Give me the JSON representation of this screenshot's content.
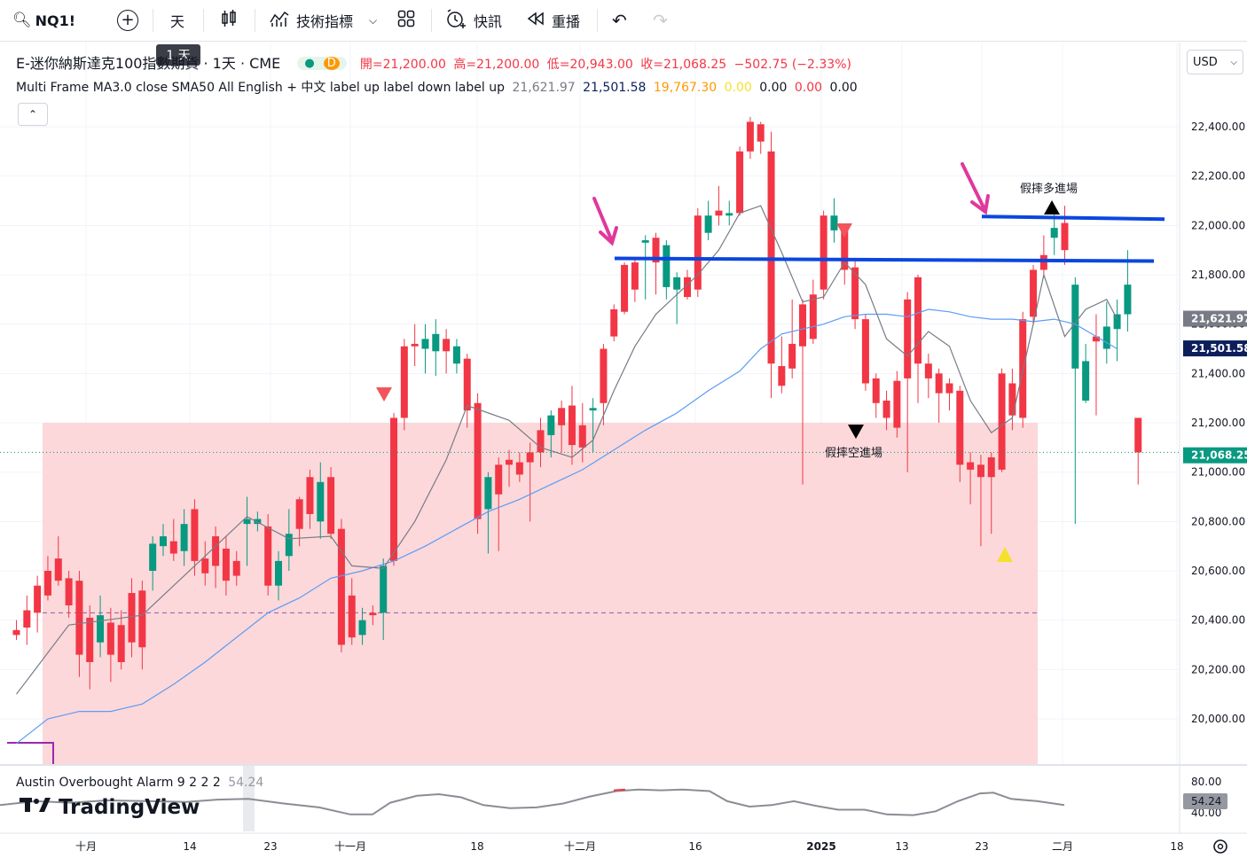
{
  "toolbar": {
    "symbol": "NQ1!",
    "interval": "天",
    "indicators_label": "技術指標",
    "alert_label": "快訊",
    "replay_label": "重播",
    "interval_tooltip": "1 天"
  },
  "legend": {
    "instrument": "E-迷你納斯達克100指數期貨 · 1天 · CME",
    "badge": "D",
    "open": "開=21,200.00",
    "high": "高=21,200.00",
    "low": "低=20,943.00",
    "close": "收=21,068.25",
    "change": "−502.75 (−2.33%)",
    "indicator_name": "Multi Frame MA3.0 close SMA50 All English + 中文 label up label down label up",
    "indicator_values": [
      "21,621.97",
      "21,501.58",
      "19,767.30",
      "0.00",
      "0.00",
      "0.00",
      "0.00"
    ]
  },
  "currency": "USD",
  "price_axis": {
    "ticks": [
      "22,400.00",
      "22,200.00",
      "22,000.00",
      "21,800.00",
      "21,600.00",
      "21,400.00",
      "21,200.00",
      "21,000.00",
      "20,800.00",
      "20,600.00",
      "20,400.00",
      "20,200.00",
      "20,000.00"
    ],
    "badges": [
      {
        "text": "21,621.97",
        "color": "#787b86"
      },
      {
        "text": "21,501.58",
        "color": "#0c1f5c"
      },
      {
        "text": "21,068.25",
        "color": "#089981"
      }
    ]
  },
  "annotations": {
    "fake_long": "假摔多進場",
    "fake_short": "假摔空進場"
  },
  "indicator_pane": {
    "title": "Austin Overbought Alarm 9 2 2 2",
    "value": "54.24",
    "axis": [
      "80.00",
      "40.00"
    ],
    "badge": "54.24"
  },
  "time_axis": [
    "十月",
    "14",
    "23",
    "十一月",
    "18",
    "十二月",
    "16",
    "2025",
    "13",
    "23",
    "二月",
    "18"
  ],
  "branding": "TradingView",
  "colors": {
    "up": "#089981",
    "down": "#f23645",
    "zone": "#fcd8da",
    "line_blue": "#0b46e0",
    "arrow_pink": "#e0389c"
  },
  "chart_data": {
    "type": "candlestick",
    "symbol": "NQ1!",
    "interval": "1D",
    "ylim": [
      19880,
      22480
    ],
    "ohlc": [
      [
        20360,
        20340,
        20320,
        20400
      ],
      [
        20440,
        20370,
        20300,
        20500
      ],
      [
        20540,
        20430,
        20350,
        20580
      ],
      [
        20600,
        20500,
        20480,
        20660
      ],
      [
        20650,
        20560,
        20540,
        20740
      ],
      [
        20570,
        20460,
        20410,
        20600
      ],
      [
        20560,
        20260,
        20170,
        20600
      ],
      [
        20410,
        20230,
        20120,
        20460
      ],
      [
        20310,
        20420,
        20250,
        20500
      ],
      [
        20390,
        20260,
        20150,
        20450
      ],
      [
        20380,
        20230,
        20200,
        20440
      ],
      [
        20510,
        20310,
        20250,
        20570
      ],
      [
        20520,
        20290,
        20200,
        20560
      ],
      [
        20600,
        20710,
        20520,
        20740
      ],
      [
        20700,
        20740,
        20660,
        20790
      ],
      [
        20720,
        20670,
        20640,
        20810
      ],
      [
        20680,
        20790,
        20620,
        20850
      ],
      [
        20850,
        20640,
        20580,
        20890
      ],
      [
        20650,
        20590,
        20540,
        20720
      ],
      [
        20740,
        20620,
        20530,
        20780
      ],
      [
        20690,
        20560,
        20500,
        20740
      ],
      [
        20640,
        20580,
        20540,
        20680
      ],
      [
        20790,
        20810,
        20620,
        20900
      ],
      [
        20790,
        20810,
        20760,
        20840
      ],
      [
        20780,
        20540,
        20500,
        20830
      ],
      [
        20540,
        20640,
        20480,
        20680
      ],
      [
        20660,
        20750,
        20600,
        20850
      ],
      [
        20890,
        20770,
        20700,
        20900
      ],
      [
        20980,
        20830,
        20770,
        21010
      ],
      [
        20800,
        20960,
        20730,
        21040
      ],
      [
        20980,
        20750,
        20730,
        21020
      ],
      [
        20770,
        20300,
        20270,
        20810
      ],
      [
        20500,
        20330,
        20300,
        20570
      ],
      [
        20340,
        20400,
        20300,
        20450
      ],
      [
        20430,
        20420,
        20380,
        20460
      ],
      [
        20430,
        20620,
        20320,
        20650
      ],
      [
        21220,
        20640,
        20620,
        21240
      ],
      [
        21510,
        21220,
        21170,
        21540
      ],
      [
        21520,
        21510,
        21430,
        21600
      ],
      [
        21500,
        21540,
        21400,
        21600
      ],
      [
        21490,
        21560,
        21390,
        21620
      ],
      [
        21540,
        21490,
        21400,
        21580
      ],
      [
        21440,
        21510,
        21400,
        21540
      ],
      [
        21460,
        21250,
        21180,
        21480
      ],
      [
        21280,
        20810,
        20750,
        21320
      ],
      [
        20850,
        20980,
        20670,
        21000
      ],
      [
        21030,
        20910,
        20680,
        21060
      ],
      [
        21050,
        21030,
        20940,
        21090
      ],
      [
        21040,
        20990,
        20960,
        21080
      ],
      [
        21080,
        21040,
        20800,
        21120
      ],
      [
        21170,
        21080,
        21020,
        21220
      ],
      [
        21150,
        21230,
        21060,
        21250
      ],
      [
        21260,
        21190,
        21080,
        21290
      ],
      [
        21270,
        21110,
        21030,
        21350
      ],
      [
        21190,
        21100,
        21040,
        21280
      ],
      [
        21250,
        21260,
        21080,
        21300
      ],
      [
        21500,
        21280,
        21190,
        21520
      ],
      [
        21660,
        21550,
        21530,
        21680
      ],
      [
        21840,
        21650,
        21640,
        21850
      ],
      [
        21850,
        21740,
        21690,
        21870
      ],
      [
        21930,
        21940,
        21700,
        21960
      ],
      [
        21950,
        21850,
        21720,
        21970
      ],
      [
        21750,
        21920,
        21700,
        21940
      ],
      [
        21740,
        21790,
        21600,
        21810
      ],
      [
        21790,
        21710,
        21700,
        21820
      ],
      [
        22040,
        21740,
        21710,
        22070
      ],
      [
        21970,
        22040,
        21940,
        22100
      ],
      [
        22060,
        22040,
        22000,
        22160
      ],
      [
        22040,
        22050,
        22000,
        22100
      ],
      [
        22300,
        22050,
        22040,
        22320
      ],
      [
        22420,
        22300,
        22270,
        22440
      ],
      [
        22410,
        22340,
        22290,
        22420
      ],
      [
        22300,
        21440,
        21300,
        22380
      ],
      [
        21430,
        21350,
        21320,
        21550
      ],
      [
        21520,
        21420,
        21380,
        21700
      ],
      [
        21680,
        21510,
        20950,
        21700
      ],
      [
        21720,
        21540,
        21520,
        21780
      ],
      [
        22040,
        21740,
        21700,
        22060
      ],
      [
        21980,
        22040,
        21930,
        22110
      ],
      [
        21980,
        21820,
        21760,
        22000
      ],
      [
        21830,
        21620,
        21580,
        21860
      ],
      [
        21620,
        21360,
        21330,
        21640
      ],
      [
        21380,
        21280,
        21220,
        21400
      ],
      [
        21290,
        21220,
        21170,
        21330
      ],
      [
        21370,
        21180,
        21140,
        21410
      ],
      [
        21700,
        21380,
        21000,
        21730
      ],
      [
        21790,
        21440,
        21280,
        21800
      ],
      [
        21440,
        21380,
        21300,
        21480
      ],
      [
        21400,
        21320,
        21200,
        21420
      ],
      [
        21360,
        21320,
        21250,
        21380
      ],
      [
        21330,
        21030,
        20960,
        21350
      ],
      [
        21040,
        21010,
        20870,
        21080
      ],
      [
        21030,
        20980,
        20700,
        21070
      ],
      [
        21060,
        20980,
        20750,
        21080
      ],
      [
        21400,
        21010,
        21000,
        21420
      ],
      [
        21360,
        21230,
        21170,
        21420
      ],
      [
        21620,
        21220,
        21180,
        21650
      ],
      [
        21820,
        21630,
        21600,
        21840
      ],
      [
        21880,
        21820,
        21790,
        21960
      ],
      [
        21950,
        21990,
        21880,
        22060
      ],
      [
        22010,
        21900,
        21840,
        22080
      ],
      [
        21420,
        21760,
        20790,
        21790
      ],
      [
        21290,
        21450,
        21280,
        21520
      ],
      [
        21550,
        21530,
        21230,
        21640
      ],
      [
        21500,
        21590,
        21440,
        21690
      ],
      [
        21580,
        21640,
        21450,
        21700
      ],
      [
        21640,
        21760,
        21570,
        21900
      ],
      [
        21220,
        21080,
        20950,
        21220
      ]
    ],
    "ma_fast": [
      [
        0,
        20100
      ],
      [
        5,
        20380
      ],
      [
        12,
        20420
      ],
      [
        16,
        20580
      ],
      [
        19,
        20700
      ],
      [
        22,
        20820
      ],
      [
        26,
        20730
      ],
      [
        30,
        20740
      ],
      [
        32,
        20620
      ],
      [
        35,
        20610
      ],
      [
        38,
        20800
      ],
      [
        41,
        21050
      ],
      [
        43,
        21270
      ],
      [
        47,
        21210
      ],
      [
        50,
        21100
      ],
      [
        53,
        21060
      ],
      [
        55,
        21130
      ],
      [
        57,
        21330
      ],
      [
        59,
        21510
      ],
      [
        61,
        21640
      ],
      [
        63,
        21720
      ],
      [
        65,
        21800
      ],
      [
        67,
        21900
      ],
      [
        69,
        22050
      ],
      [
        71,
        22080
      ],
      [
        73,
        21890
      ],
      [
        75,
        21690
      ],
      [
        77,
        21710
      ],
      [
        79,
        21850
      ],
      [
        81,
        21760
      ],
      [
        83,
        21540
      ],
      [
        85,
        21470
      ],
      [
        87,
        21570
      ],
      [
        89,
        21510
      ],
      [
        91,
        21290
      ],
      [
        93,
        21160
      ],
      [
        95,
        21220
      ],
      [
        97,
        21600
      ],
      [
        98,
        21800
      ],
      [
        100,
        21550
      ],
      [
        102,
        21660
      ],
      [
        104,
        21700
      ],
      [
        105,
        21620
      ]
    ],
    "ma_slow": [
      [
        0,
        19900
      ],
      [
        3,
        20000
      ],
      [
        6,
        20030
      ],
      [
        9,
        20030
      ],
      [
        12,
        20060
      ],
      [
        15,
        20140
      ],
      [
        18,
        20230
      ],
      [
        21,
        20330
      ],
      [
        24,
        20430
      ],
      [
        27,
        20490
      ],
      [
        30,
        20570
      ],
      [
        33,
        20600
      ],
      [
        36,
        20640
      ],
      [
        39,
        20700
      ],
      [
        42,
        20770
      ],
      [
        45,
        20840
      ],
      [
        48,
        20890
      ],
      [
        51,
        20950
      ],
      [
        54,
        21010
      ],
      [
        57,
        21090
      ],
      [
        60,
        21170
      ],
      [
        63,
        21240
      ],
      [
        66,
        21330
      ],
      [
        69,
        21410
      ],
      [
        71,
        21500
      ],
      [
        73,
        21560
      ],
      [
        75,
        21580
      ],
      [
        77,
        21600
      ],
      [
        79,
        21630
      ],
      [
        81,
        21640
      ],
      [
        83,
        21640
      ],
      [
        85,
        21630
      ],
      [
        87,
        21660
      ],
      [
        89,
        21650
      ],
      [
        91,
        21630
      ],
      [
        93,
        21620
      ],
      [
        95,
        21620
      ],
      [
        97,
        21610
      ],
      [
        99,
        21620
      ],
      [
        101,
        21600
      ],
      [
        103,
        21550
      ],
      [
        105,
        21500
      ]
    ],
    "levels": {
      "zone_top": 21200,
      "dashed": 20430,
      "blue_line_1": 21870,
      "blue_line_2": 22040
    }
  }
}
